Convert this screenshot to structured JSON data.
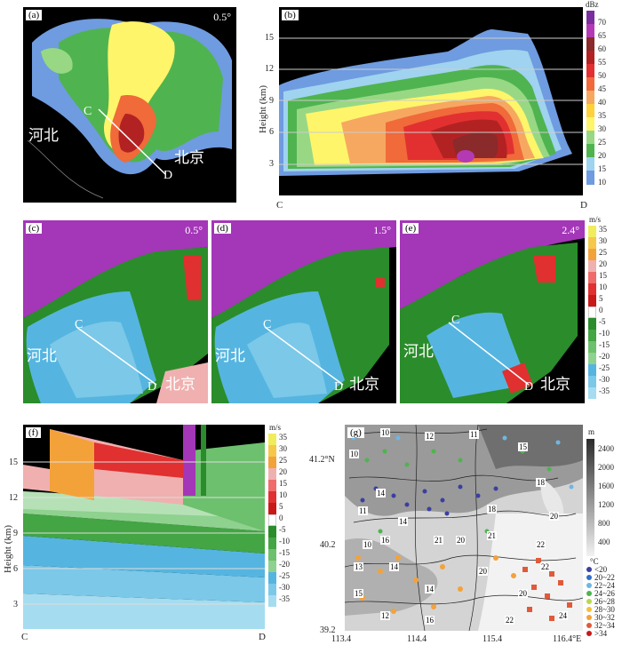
{
  "panels": {
    "a": {
      "label": "(a)",
      "angle": "0.5°",
      "region1": "河北",
      "region2": "北京",
      "pt_c": "C",
      "pt_d": "D"
    },
    "b": {
      "label": "(b)",
      "ylabel": "Height (km)",
      "yticks": [
        "3",
        "6",
        "9",
        "12",
        "15"
      ],
      "left": "C",
      "right": "D",
      "unit": "dBz",
      "cbar": [
        "70",
        "65",
        "60",
        "55",
        "50",
        "45",
        "40",
        "35",
        "30",
        "25",
        "20",
        "15",
        "10"
      ]
    },
    "c": {
      "label": "(c)",
      "angle": "0.5°",
      "region1": "河北",
      "region2": "北京",
      "pt_c": "C",
      "pt_d": "D"
    },
    "d": {
      "label": "(d)",
      "angle": "1.5°",
      "region1": "河北",
      "region2": "北京",
      "pt_c": "C",
      "pt_d": "D"
    },
    "e": {
      "label": "(e)",
      "angle": "2.4°",
      "region1": "河北",
      "region2": "北京",
      "pt_c": "C",
      "pt_d": "D",
      "unit": "m/s",
      "cbar": [
        "35",
        "30",
        "25",
        "20",
        "15",
        "10",
        "5",
        "0",
        "-5",
        "-10",
        "-15",
        "-20",
        "-25",
        "-30",
        "-35"
      ]
    },
    "f": {
      "label": "(f)",
      "ylabel": "Height (km)",
      "yticks": [
        "3",
        "6",
        "9",
        "12",
        "15"
      ],
      "left": "C",
      "right": "D",
      "unit": "m/s",
      "cbar": [
        "35",
        "30",
        "25",
        "20",
        "15",
        "10",
        "5",
        "0",
        "-5",
        "-10",
        "-15",
        "-20",
        "-25",
        "-30",
        "-35"
      ]
    },
    "g": {
      "label": "(g)",
      "lat_labels": [
        "41.2°N",
        "40.2",
        "39.2"
      ],
      "lon_labels": [
        "113.4",
        "114.4",
        "115.4",
        "116.4°E"
      ],
      "elev_unit": "m",
      "elev_ticks": [
        "2400",
        "2000",
        "1600",
        "1200",
        "800",
        "400"
      ],
      "temp_unit": "°C",
      "temp_legend": [
        "<20",
        "20~22",
        "22~24",
        "24~26",
        "26~28",
        "28~30",
        "30~32",
        "32~34",
        ">34"
      ],
      "contours": [
        "10",
        "12",
        "11",
        "15",
        "10",
        "18",
        "14",
        "11",
        "20",
        "14",
        "16",
        "18",
        "10",
        "21",
        "20",
        "21",
        "22",
        "14",
        "13",
        "20",
        "15",
        "14",
        "12",
        "16",
        "20",
        "22",
        "24",
        "22"
      ]
    }
  },
  "colors": {
    "dbz": [
      "#7b2f9e",
      "#b43ab5",
      "#8a2a2a",
      "#b32222",
      "#e23030",
      "#f06a3a",
      "#f6a860",
      "#ffd23c",
      "#fff56a",
      "#98d884",
      "#4fb44f",
      "#9fd3ef",
      "#6f9be0"
    ],
    "vel": [
      "#f0ec5c",
      "#f5c84a",
      "#f3a23a",
      "#f0b0b0",
      "#f06a6a",
      "#e03030",
      "#c81818",
      "#fff",
      "#2b8c2b",
      "#43a543",
      "#6dc06d",
      "#8fd18f",
      "#55b5e0",
      "#7cc8e8",
      "#a5dcf0"
    ]
  }
}
